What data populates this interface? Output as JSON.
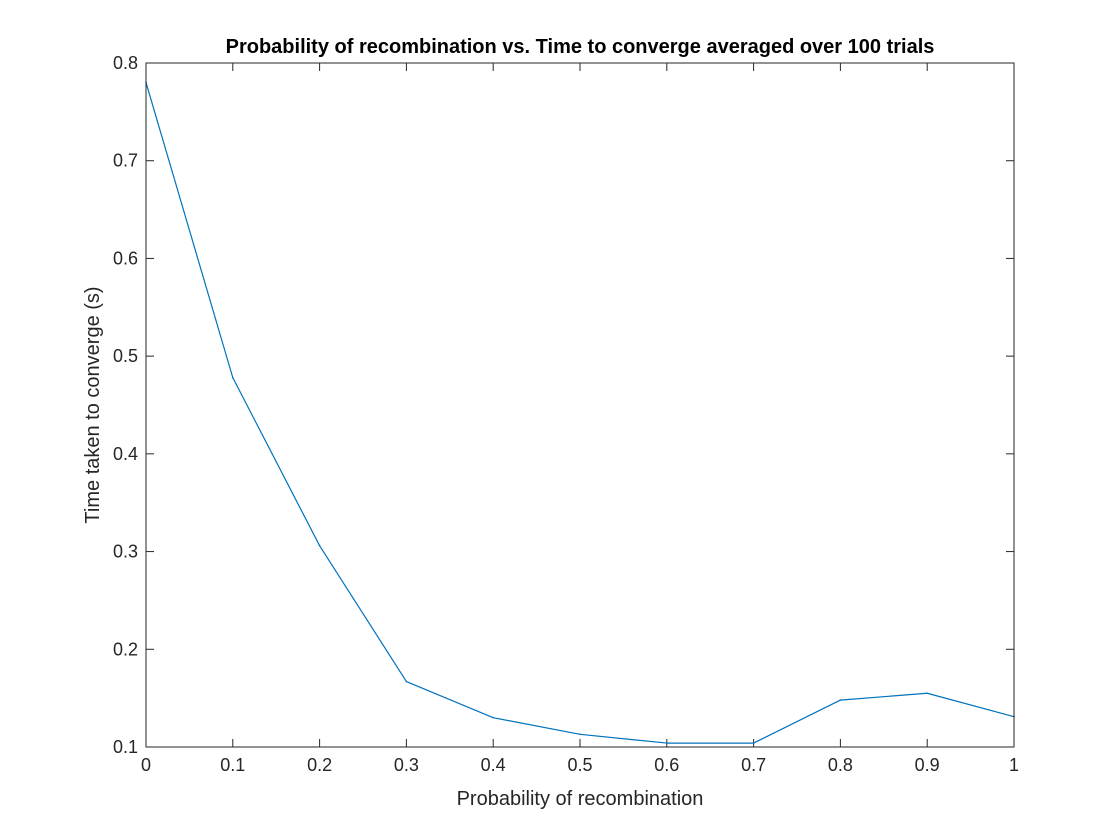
{
  "chart_data": {
    "type": "line",
    "title": "Probability of recombination vs. Time to converge averaged over 100 trials",
    "xlabel": "Probability of recombination",
    "ylabel": "Time taken to converge (s)",
    "xlim": [
      0,
      1
    ],
    "ylim": [
      0.1,
      0.8
    ],
    "xticks": [
      "0",
      "0.1",
      "0.2",
      "0.3",
      "0.4",
      "0.5",
      "0.6",
      "0.7",
      "0.8",
      "0.9",
      "1"
    ],
    "yticks": [
      "0.1",
      "0.2",
      "0.3",
      "0.4",
      "0.5",
      "0.6",
      "0.7",
      "0.8"
    ],
    "grid": false,
    "x": [
      0,
      0.1,
      0.2,
      0.3,
      0.4,
      0.5,
      0.6,
      0.7,
      0.8,
      0.9,
      1.0
    ],
    "series": [
      {
        "values": [
          0.78,
          0.478,
          0.306,
          0.167,
          0.13,
          0.113,
          0.104,
          0.104,
          0.148,
          0.155,
          0.131
        ],
        "color": "#0072BD"
      }
    ]
  }
}
